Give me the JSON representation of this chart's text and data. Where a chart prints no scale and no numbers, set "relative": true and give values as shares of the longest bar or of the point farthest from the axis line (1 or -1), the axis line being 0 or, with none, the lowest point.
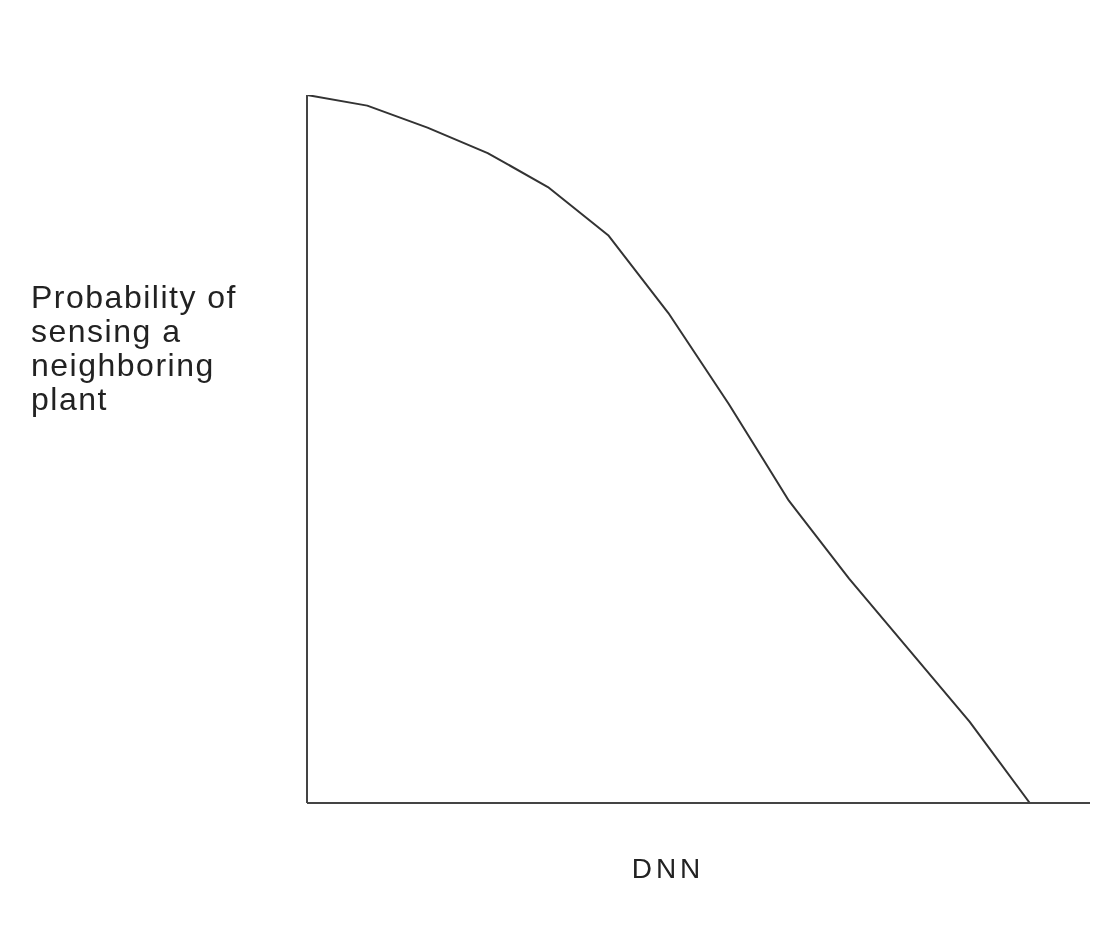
{
  "chart_data": {
    "type": "line",
    "xlabel": "DNN",
    "ylabel": "Probability of sensing a neighboring plant",
    "relative": true,
    "categories": [
      null,
      null,
      null,
      null,
      null,
      null,
      null,
      null,
      null,
      null,
      null,
      null,
      null,
      null
    ],
    "series": [
      {
        "color": "#333333",
        "values": [
          1,
          0.985,
          0.954,
          0.918,
          0.87,
          0.802,
          0.692,
          0.564,
          0.427,
          0.317,
          0.216,
          0.115,
          0,
          null
        ]
      }
    ],
    "grid": false,
    "legend": false,
    "marker": "none",
    "line_style": "solid"
  }
}
